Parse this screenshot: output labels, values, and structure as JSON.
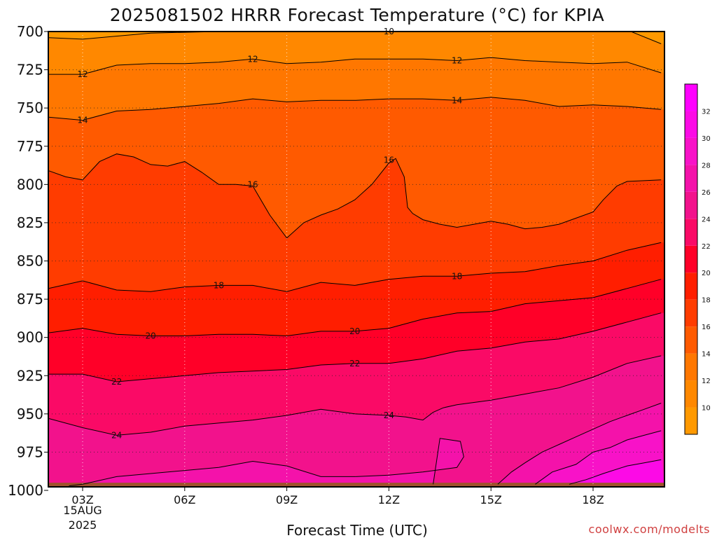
{
  "chart_data": {
    "type": "heatmap",
    "title": "2025081502 HRRR Forecast Temperature (°C) for KPIA",
    "xlabel": "Forecast Time (UTC)",
    "ylabel": "",
    "x_ticks": [
      "03Z",
      "06Z",
      "09Z",
      "12Z",
      "15Z",
      "18Z"
    ],
    "x_tick_hours": [
      3,
      6,
      9,
      12,
      15,
      18
    ],
    "x_date_label": [
      "15AUG",
      "2025"
    ],
    "xlim": [
      2,
      20
    ],
    "y_ticks": [
      700,
      725,
      750,
      775,
      800,
      825,
      850,
      875,
      900,
      925,
      950,
      975,
      1000
    ],
    "ylim": [
      700,
      1000
    ],
    "y_reversed": true,
    "grid": true,
    "colorbar": {
      "position": "right",
      "tick_labels": [
        "10",
        "12",
        "14",
        "16",
        "18",
        "20",
        "22",
        "24",
        "26",
        "28",
        "30",
        "32"
      ],
      "levels": [
        8,
        10,
        12,
        14,
        16,
        18,
        20,
        22,
        24,
        26,
        28,
        30,
        32,
        34
      ],
      "colors": [
        "#ff9900",
        "#ff8800",
        "#ff7700",
        "#ff5a00",
        "#ff3c00",
        "#ff1e00",
        "#ff0028",
        "#fa0a66",
        "#f2128c",
        "#f412aa",
        "#f812c8",
        "#fc0ae6",
        "#ff00ff"
      ]
    },
    "contours": [
      {
        "level": 10,
        "label": "10",
        "x": [
          2,
          3,
          5,
          7,
          9,
          11,
          12,
          13,
          14,
          15,
          17,
          19,
          20
        ],
        "p": [
          704,
          705,
          701,
          700,
          699,
          700,
          700,
          700,
          700,
          699,
          700,
          699,
          708
        ]
      },
      {
        "level": 12,
        "label": "12",
        "x": [
          2,
          3,
          4,
          5,
          6,
          7,
          8,
          9,
          10,
          11,
          12,
          13,
          14,
          15,
          16,
          17,
          18,
          19,
          20
        ],
        "p": [
          728,
          728,
          722,
          721,
          721,
          720,
          718,
          721,
          720,
          718,
          718,
          718,
          719,
          717,
          719,
          720,
          721,
          720,
          727
        ]
      },
      {
        "level": 14,
        "label": "14",
        "x": [
          2,
          3,
          4,
          5,
          6,
          7,
          8,
          9,
          10,
          11,
          12,
          13,
          14,
          15,
          16,
          17,
          18,
          19,
          20
        ],
        "p": [
          756,
          758,
          752,
          751,
          749,
          747,
          744,
          746,
          745,
          745,
          744,
          744,
          745,
          743,
          745,
          749,
          748,
          749,
          751
        ]
      },
      {
        "level": 16,
        "label": "16",
        "x": [
          2,
          2.5,
          3,
          3.5,
          4,
          4.5,
          5,
          5.5,
          6,
          6.5,
          7,
          7.5,
          8,
          8.5,
          9,
          9.5,
          10,
          10.5,
          11,
          11.5,
          12,
          12.2,
          12.45,
          12.55,
          12.7,
          13,
          13.5,
          14,
          14.5,
          15,
          15.5,
          16,
          16.5,
          17,
          17.5,
          18,
          18.3,
          18.7,
          19,
          20
        ],
        "p": [
          791,
          795,
          797,
          785,
          780,
          782,
          787,
          788,
          785,
          792,
          800,
          800,
          801,
          820,
          835,
          825,
          820,
          816,
          810,
          800,
          786,
          783,
          795,
          815,
          819,
          823,
          826,
          828,
          826,
          824,
          826,
          829,
          828,
          826,
          822,
          818,
          810,
          801,
          798,
          797
        ]
      },
      {
        "level": 18,
        "label": "18",
        "x": [
          2,
          3,
          4,
          5,
          6,
          7,
          8,
          9,
          10,
          11,
          12,
          13,
          14,
          15,
          16,
          17,
          18,
          19,
          20
        ],
        "p": [
          868,
          863,
          869,
          870,
          867,
          866,
          866,
          870,
          864,
          866,
          862,
          860,
          860,
          858,
          857,
          853,
          850,
          843,
          838
        ]
      },
      {
        "level": 20,
        "label": "20",
        "x": [
          2,
          3,
          4,
          5,
          6,
          7,
          8,
          9,
          10,
          11,
          12,
          13,
          14,
          15,
          16,
          17,
          18,
          19,
          20
        ],
        "p": [
          897,
          894,
          898,
          899,
          899,
          898,
          898,
          899,
          896,
          896,
          894,
          888,
          884,
          883,
          878,
          876,
          874,
          868,
          862
        ]
      },
      {
        "level": 22,
        "label": "22",
        "x": [
          2,
          3,
          4,
          5,
          6,
          7,
          8,
          9,
          10,
          11,
          12,
          13,
          14,
          15,
          16,
          17,
          18,
          19,
          20
        ],
        "p": [
          924,
          924,
          929,
          927,
          925,
          923,
          922,
          921,
          918,
          917,
          917,
          914,
          909,
          907,
          903,
          901,
          896,
          890,
          884
        ]
      },
      {
        "level": 24,
        "label": "24",
        "x": [
          2,
          3,
          4,
          5,
          6,
          7,
          8,
          9,
          10,
          11,
          12,
          12.5,
          13,
          13.3,
          13.6,
          14,
          15,
          16,
          17,
          18,
          19,
          20
        ],
        "p": [
          953,
          959,
          964,
          962,
          958,
          956,
          954,
          951,
          947,
          950,
          951,
          952,
          954,
          949,
          946,
          944,
          941,
          937,
          933,
          926,
          917,
          912
        ]
      },
      {
        "level": 26,
        "label": "",
        "x": [
          2.6,
          3,
          4,
          5,
          6,
          7,
          8,
          9,
          10,
          11,
          12,
          13,
          14,
          14.2,
          14.1,
          13.5,
          13.3
        ],
        "p": [
          997,
          996,
          991,
          989,
          987,
          985,
          981,
          984,
          991,
          991,
          990,
          988,
          985,
          978,
          968,
          966,
          996
        ]
      },
      {
        "level": 26,
        "label": "",
        "x": [
          15.2,
          15.6,
          16,
          16.5,
          17,
          17.5,
          18,
          18.5,
          19,
          19.5,
          20
        ],
        "p": [
          996,
          988,
          982,
          975,
          970,
          965,
          960,
          955,
          951,
          947,
          943
        ]
      },
      {
        "level": 28,
        "label": "",
        "x": [
          16.3,
          16.8,
          17.5,
          18,
          18.5,
          19,
          19.5,
          20
        ],
        "p": [
          996,
          988,
          983,
          975,
          972,
          967,
          964,
          961
        ]
      },
      {
        "level": 30,
        "label": "",
        "x": [
          17.3,
          17.8,
          18.3,
          19,
          19.5,
          20
        ],
        "p": [
          996,
          993,
          989,
          984,
          982,
          980
        ]
      }
    ],
    "contour_labels": [
      {
        "text": "10",
        "x": 12,
        "p": 700
      },
      {
        "text": "12",
        "x": 3,
        "p": 728
      },
      {
        "text": "12",
        "x": 8,
        "p": 718
      },
      {
        "text": "12",
        "x": 14,
        "p": 719
      },
      {
        "text": "14",
        "x": 3,
        "p": 758
      },
      {
        "text": "14",
        "x": 14,
        "p": 745
      },
      {
        "text": "16",
        "x": 8,
        "p": 800
      },
      {
        "text": "16",
        "x": 12,
        "p": 784
      },
      {
        "text": "18",
        "x": 7,
        "p": 866
      },
      {
        "text": "18",
        "x": 14,
        "p": 860
      },
      {
        "text": "20",
        "x": 5,
        "p": 899
      },
      {
        "text": "20",
        "x": 11,
        "p": 896
      },
      {
        "text": "22",
        "x": 4,
        "p": 929
      },
      {
        "text": "22",
        "x": 11,
        "p": 917
      },
      {
        "text": "24",
        "x": 4,
        "p": 964
      },
      {
        "text": "24",
        "x": 12,
        "p": 951
      }
    ],
    "ground_color": "#a0522d",
    "ground_pressure": 995
  },
  "watermark": "coolwx.com/modelts"
}
